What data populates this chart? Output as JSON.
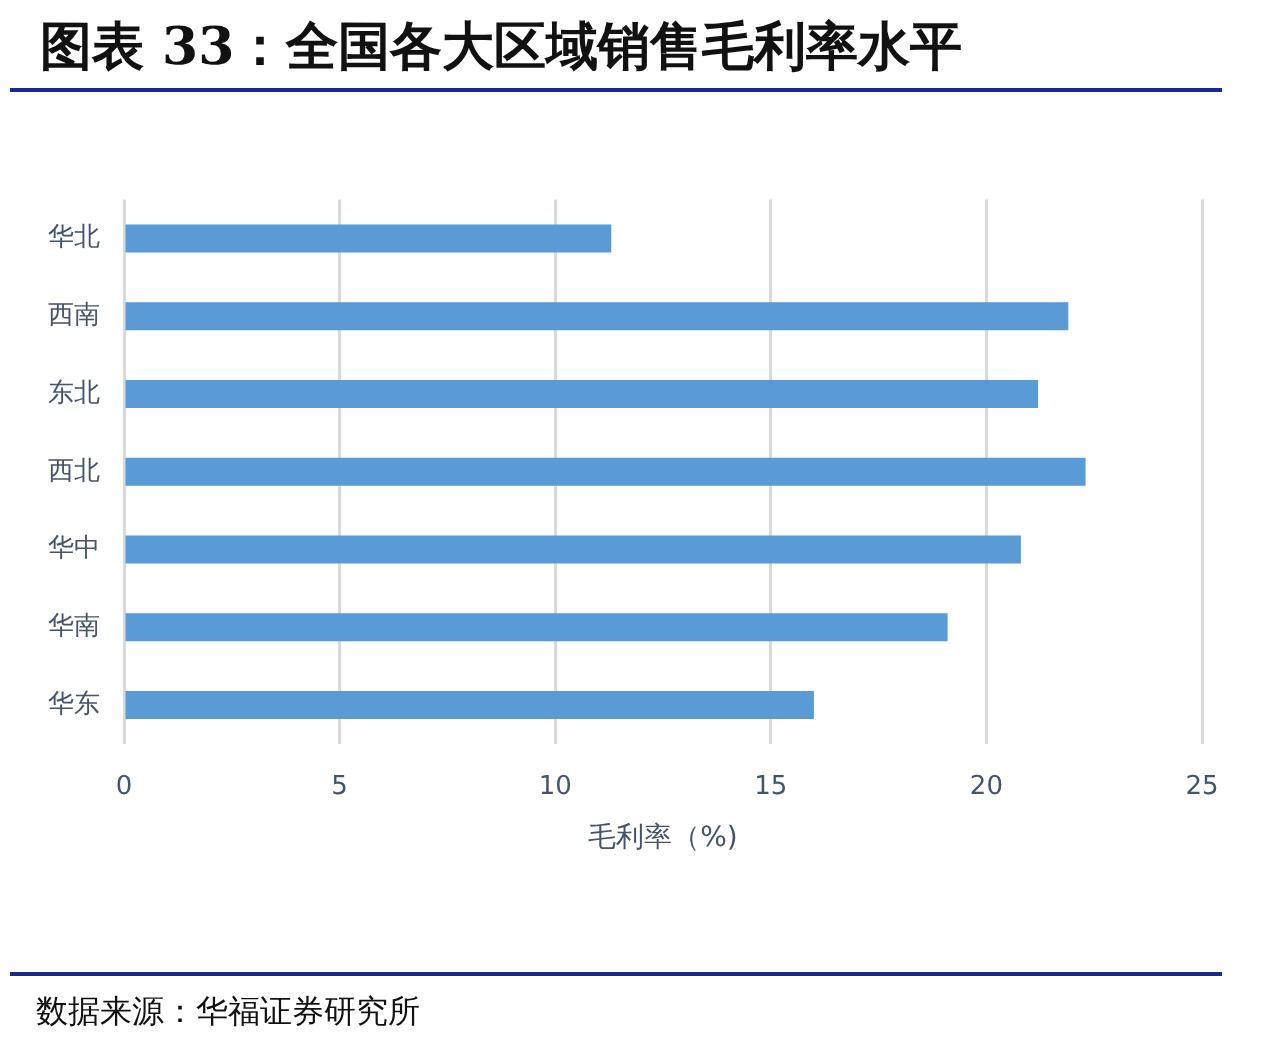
{
  "chart_data": {
    "type": "bar",
    "orientation": "horizontal",
    "title": "图表 33：全国各大区域销售毛利率水平",
    "xlabel": "毛利率（%)",
    "categories": [
      "华北",
      "西南",
      "东北",
      "西北",
      "华中",
      "华南",
      "华东"
    ],
    "values": [
      11.3,
      21.9,
      21.2,
      22.3,
      20.8,
      19.1,
      16.0
    ],
    "color": "#5b9bd5",
    "xlim": [
      0,
      25
    ],
    "xticks": [
      0,
      5,
      10,
      15,
      20,
      25
    ],
    "grid": "x",
    "annotations": [
      "数据来源：华福证券研究所"
    ]
  }
}
